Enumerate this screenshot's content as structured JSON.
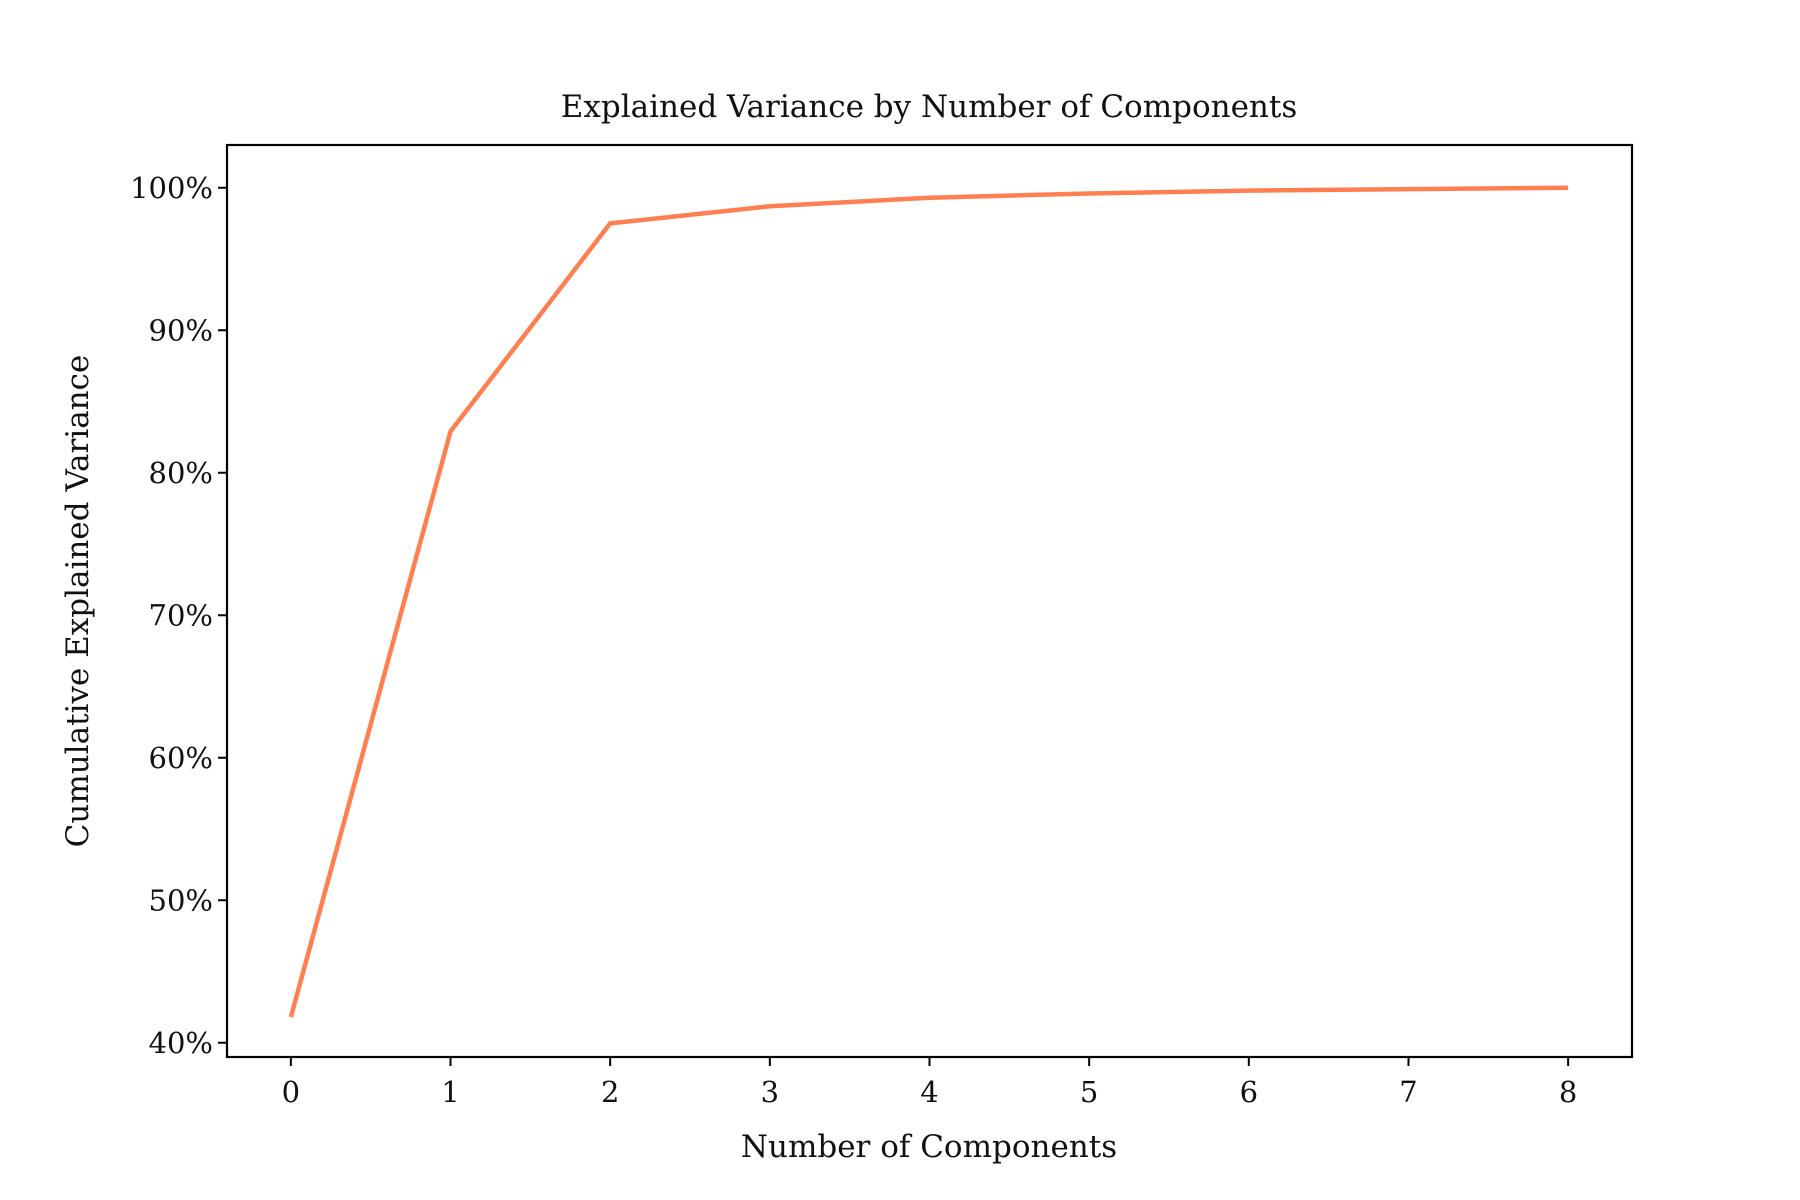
{
  "chart_data": {
    "type": "line",
    "title": "Explained Variance by Number of Components",
    "xlabel": "Number of Components",
    "ylabel": "Cumulative Explained Variance",
    "x": [
      0,
      1,
      2,
      3,
      4,
      5,
      6,
      7,
      8
    ],
    "series": [
      {
        "values": [
          0.418,
          0.829,
          0.975,
          0.987,
          0.993,
          0.996,
          0.998,
          0.999,
          1.0
        ],
        "color": "#ff7f50"
      }
    ],
    "xlim": [
      -0.4,
      8.4
    ],
    "ylim": [
      0.39,
      1.03
    ],
    "xticks": [
      0,
      1,
      2,
      3,
      4,
      5,
      6,
      7,
      8
    ],
    "xtick_labels": [
      "0",
      "1",
      "2",
      "3",
      "4",
      "5",
      "6",
      "7",
      "8"
    ],
    "yticks": [
      0.4,
      0.5,
      0.6,
      0.7,
      0.8,
      0.9,
      1.0
    ],
    "ytick_labels": [
      "40%",
      "50%",
      "60%",
      "70%",
      "80%",
      "90%",
      "100%"
    ],
    "grid": false,
    "legend": false
  }
}
